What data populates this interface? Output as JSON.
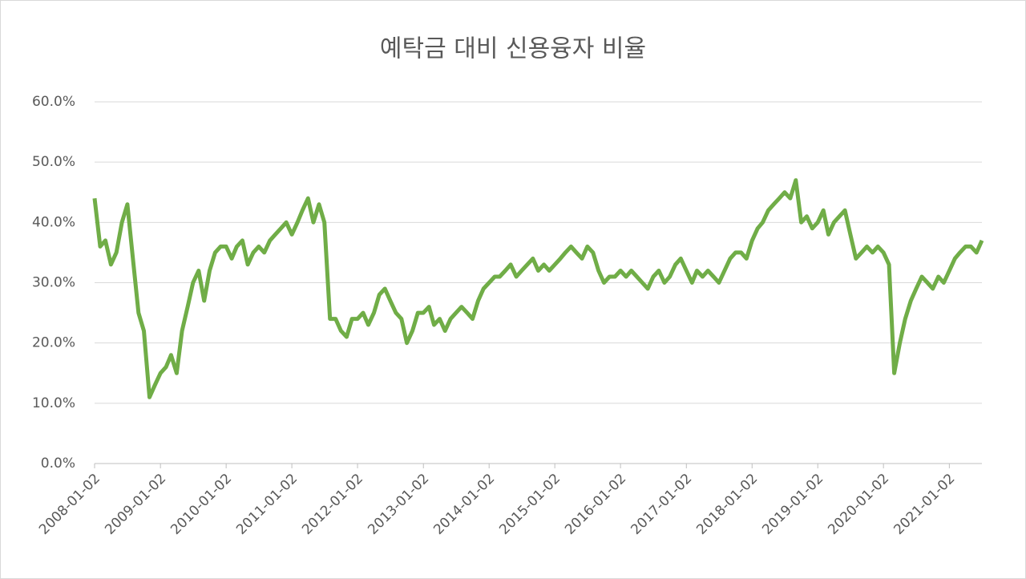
{
  "chart_data": {
    "type": "line",
    "title": "예탁금 대비 신용융자 비율",
    "x": [
      "2008-01-02",
      "2008-02-02",
      "2008-03-02",
      "2008-04-02",
      "2008-05-02",
      "2008-06-02",
      "2008-07-02",
      "2008-08-02",
      "2008-09-02",
      "2008-10-02",
      "2008-11-02",
      "2008-12-02",
      "2009-01-02",
      "2009-02-02",
      "2009-03-02",
      "2009-04-02",
      "2009-05-02",
      "2009-06-02",
      "2009-07-02",
      "2009-08-02",
      "2009-09-02",
      "2009-10-02",
      "2009-11-02",
      "2009-12-02",
      "2010-01-02",
      "2010-02-02",
      "2010-03-02",
      "2010-04-02",
      "2010-05-02",
      "2010-06-02",
      "2010-07-02",
      "2010-08-02",
      "2010-09-02",
      "2010-10-02",
      "2010-11-02",
      "2010-12-02",
      "2011-01-02",
      "2011-02-02",
      "2011-03-02",
      "2011-04-02",
      "2011-05-02",
      "2011-06-02",
      "2011-07-02",
      "2011-08-02",
      "2011-09-02",
      "2011-10-02",
      "2011-11-02",
      "2011-12-02",
      "2012-01-02",
      "2012-02-02",
      "2012-03-02",
      "2012-04-02",
      "2012-05-02",
      "2012-06-02",
      "2012-07-02",
      "2012-08-02",
      "2012-09-02",
      "2012-10-02",
      "2012-11-02",
      "2012-12-02",
      "2013-01-02",
      "2013-02-02",
      "2013-03-02",
      "2013-04-02",
      "2013-05-02",
      "2013-06-02",
      "2013-07-02",
      "2013-08-02",
      "2013-09-02",
      "2013-10-02",
      "2013-11-02",
      "2013-12-02",
      "2014-01-02",
      "2014-02-02",
      "2014-03-02",
      "2014-04-02",
      "2014-05-02",
      "2014-06-02",
      "2014-07-02",
      "2014-08-02",
      "2014-09-02",
      "2014-10-02",
      "2014-11-02",
      "2014-12-02",
      "2015-01-02",
      "2015-02-02",
      "2015-03-02",
      "2015-04-02",
      "2015-05-02",
      "2015-06-02",
      "2015-07-02",
      "2015-08-02",
      "2015-09-02",
      "2015-10-02",
      "2015-11-02",
      "2015-12-02",
      "2016-01-02",
      "2016-02-02",
      "2016-03-02",
      "2016-04-02",
      "2016-05-02",
      "2016-06-02",
      "2016-07-02",
      "2016-08-02",
      "2016-09-02",
      "2016-10-02",
      "2016-11-02",
      "2016-12-02",
      "2017-01-02",
      "2017-02-02",
      "2017-03-02",
      "2017-04-02",
      "2017-05-02",
      "2017-06-02",
      "2017-07-02",
      "2017-08-02",
      "2017-09-02",
      "2017-10-02",
      "2017-11-02",
      "2017-12-02",
      "2018-01-02",
      "2018-02-02",
      "2018-03-02",
      "2018-04-02",
      "2018-05-02",
      "2018-06-02",
      "2018-07-02",
      "2018-08-02",
      "2018-09-02",
      "2018-10-02",
      "2018-11-02",
      "2018-12-02",
      "2019-01-02",
      "2019-02-02",
      "2019-03-02",
      "2019-04-02",
      "2019-05-02",
      "2019-06-02",
      "2019-07-02",
      "2019-08-02",
      "2019-09-02",
      "2019-10-02",
      "2019-11-02",
      "2019-12-02",
      "2020-01-02",
      "2020-02-02",
      "2020-03-02",
      "2020-04-02",
      "2020-05-02",
      "2020-06-02",
      "2020-07-02",
      "2020-08-02",
      "2020-09-02",
      "2020-10-02",
      "2020-11-02",
      "2020-12-02",
      "2021-01-02",
      "2021-02-02",
      "2021-03-02",
      "2021-04-02",
      "2021-05-02",
      "2021-06-02",
      "2021-07-02"
    ],
    "series": [
      {
        "name": "예탁금 대비 신용융자 비율",
        "color": "#70ad47",
        "values": [
          44,
          36,
          37,
          33,
          35,
          40,
          43,
          34,
          25,
          22,
          11,
          13,
          15,
          16,
          18,
          15,
          22,
          26,
          30,
          32,
          27,
          32,
          35,
          36,
          36,
          34,
          36,
          37,
          33,
          35,
          36,
          35,
          37,
          38,
          39,
          40,
          38,
          40,
          42,
          44,
          40,
          43,
          40,
          24,
          24,
          22,
          21,
          24,
          24,
          25,
          23,
          25,
          28,
          29,
          27,
          25,
          24,
          20,
          22,
          25,
          25,
          26,
          23,
          24,
          22,
          24,
          25,
          26,
          25,
          24,
          27,
          29,
          30,
          31,
          31,
          32,
          33,
          31,
          32,
          33,
          34,
          32,
          33,
          32,
          33,
          34,
          35,
          36,
          35,
          34,
          36,
          35,
          32,
          30,
          31,
          31,
          32,
          31,
          32,
          31,
          30,
          29,
          31,
          32,
          30,
          31,
          33,
          34,
          32,
          30,
          32,
          31,
          32,
          31,
          30,
          32,
          34,
          35,
          35,
          34,
          37,
          39,
          40,
          42,
          43,
          44,
          45,
          44,
          47,
          40,
          41,
          39,
          40,
          42,
          38,
          40,
          41,
          42,
          38,
          34,
          35,
          36,
          35,
          36,
          35,
          33,
          15,
          20,
          24,
          27,
          29,
          31,
          30,
          29,
          31,
          30,
          32,
          34,
          35,
          36,
          36,
          35,
          37
        ]
      }
    ],
    "xlim": [
      "2008-01-02",
      "2021-07-02"
    ],
    "xticks": [
      "2008-01-02",
      "2009-01-02",
      "2010-01-02",
      "2011-01-02",
      "2012-01-02",
      "2013-01-02",
      "2014-01-02",
      "2015-01-02",
      "2016-01-02",
      "2017-01-02",
      "2018-01-02",
      "2019-01-02",
      "2020-01-02",
      "2021-01-02"
    ],
    "ylim": [
      0,
      60
    ],
    "yticks": [
      {
        "value": 0,
        "label": "0.0%"
      },
      {
        "value": 10,
        "label": "10.0%"
      },
      {
        "value": 20,
        "label": "20.0%"
      },
      {
        "value": 30,
        "label": "30.0%"
      },
      {
        "value": 40,
        "label": "40.0%"
      },
      {
        "value": 50,
        "label": "50.0%"
      },
      {
        "value": 60,
        "label": "60.0%"
      }
    ],
    "grid": true
  }
}
